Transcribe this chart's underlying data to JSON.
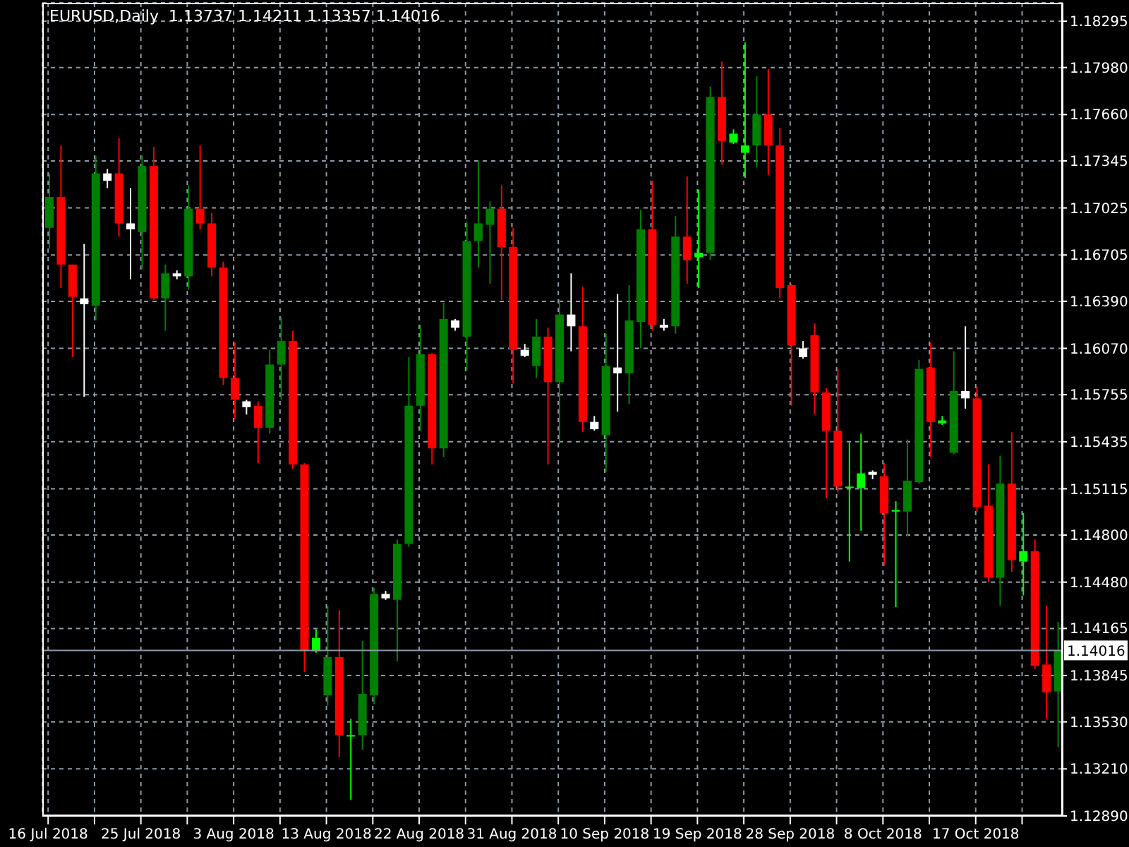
{
  "chart_data": {
    "type": "candlestick",
    "title": "EURUSD,Daily  1.13737 1.14211 1.13357 1.14016",
    "categories": [
      "16 Jul 2018",
      null,
      null,
      null,
      null,
      null,
      null,
      null,
      "25 Jul 2018",
      null,
      null,
      null,
      null,
      null,
      null,
      null,
      "3 Aug 2018",
      null,
      null,
      null,
      null,
      null,
      null,
      null,
      "13 Aug 2018",
      null,
      null,
      null,
      null,
      null,
      null,
      null,
      "22 Aug 2018",
      null,
      null,
      null,
      null,
      null,
      null,
      null,
      "31 Aug 2018",
      null,
      null,
      null,
      null,
      null,
      null,
      null,
      "10 Sep 2018",
      null,
      null,
      null,
      null,
      null,
      null,
      null,
      "19 Sep 2018",
      null,
      null,
      null,
      null,
      null,
      null,
      null,
      "28 Sep 2018",
      null,
      null,
      null,
      null,
      null,
      null,
      null,
      "8 Oct 2018",
      null,
      null,
      null,
      null,
      null,
      null,
      null,
      "17 Oct 2018",
      null,
      null,
      null,
      null,
      null,
      null,
      null
    ],
    "ohlc": [
      [
        1.1689,
        1.1726,
        1.1675,
        1.171
      ],
      [
        1.171,
        1.1745,
        1.1648,
        1.1664
      ],
      [
        1.1664,
        1.1664,
        1.1601,
        1.1642
      ],
      [
        1.1637,
        1.1678,
        1.1574,
        1.1641
      ],
      [
        1.1636,
        1.1738,
        1.1626,
        1.1726
      ],
      [
        1.1721,
        1.1729,
        1.1716,
        1.1726
      ],
      [
        1.1726,
        1.175,
        1.1683,
        1.1692
      ],
      [
        1.1688,
        1.1716,
        1.1654,
        1.1692
      ],
      [
        1.1686,
        1.1738,
        1.1661,
        1.1731
      ],
      [
        1.1731,
        1.1744,
        1.164,
        1.1641
      ],
      [
        1.1641,
        1.1664,
        1.1619,
        1.1658
      ],
      [
        1.1656,
        1.166,
        1.1654,
        1.1658
      ],
      [
        1.1656,
        1.1718,
        1.1647,
        1.1702
      ],
      [
        1.1702,
        1.1745,
        1.1688,
        1.1692
      ],
      [
        1.1692,
        1.1699,
        1.1656,
        1.1662
      ],
      [
        1.1662,
        1.1666,
        1.1582,
        1.1587
      ],
      [
        1.1587,
        1.1611,
        1.1559,
        1.1572
      ],
      [
        1.1567,
        1.1572,
        1.1562,
        1.1571
      ],
      [
        1.1568,
        1.1571,
        1.1529,
        1.1553
      ],
      [
        1.1553,
        1.1606,
        1.1549,
        1.1596
      ],
      [
        1.1596,
        1.1628,
        1.1572,
        1.1612
      ],
      [
        1.1612,
        1.1619,
        1.1525,
        1.1528
      ],
      [
        1.1528,
        1.1529,
        1.1387,
        1.1401
      ],
      [
        1.1401,
        1.1416,
        1.14,
        1.141
      ],
      [
        1.1371,
        1.1432,
        1.1364,
        1.1397
      ],
      [
        1.1397,
        1.1429,
        1.1329,
        1.1344
      ],
      [
        1.1343,
        1.1355,
        1.13,
        1.1344
      ],
      [
        1.1344,
        1.1408,
        1.1334,
        1.1372
      ],
      [
        1.1371,
        1.1444,
        1.1365,
        1.144
      ],
      [
        1.1437,
        1.1442,
        1.1436,
        1.144
      ],
      [
        1.1436,
        1.1477,
        1.1394,
        1.1474
      ],
      [
        1.1474,
        1.1601,
        1.1472,
        1.1568
      ],
      [
        1.1568,
        1.1623,
        1.1551,
        1.1603
      ],
      [
        1.1603,
        1.1604,
        1.1528,
        1.1539
      ],
      [
        1.1539,
        1.1638,
        1.1533,
        1.1627
      ],
      [
        1.1621,
        1.1627,
        1.1619,
        1.1626
      ],
      [
        1.1615,
        1.1693,
        1.1592,
        1.168
      ],
      [
        1.168,
        1.1734,
        1.1662,
        1.1692
      ],
      [
        1.1691,
        1.1707,
        1.1651,
        1.1702
      ],
      [
        1.1702,
        1.1718,
        1.164,
        1.1676
      ],
      [
        1.1676,
        1.1689,
        1.1583,
        1.1606
      ],
      [
        1.1602,
        1.161,
        1.1601,
        1.1606
      ],
      [
        1.1595,
        1.1627,
        1.1587,
        1.1615
      ],
      [
        1.1615,
        1.1621,
        1.1528,
        1.1584
      ],
      [
        1.1584,
        1.164,
        1.1542,
        1.163
      ],
      [
        1.1622,
        1.1658,
        1.1605,
        1.163
      ],
      [
        1.1622,
        1.1649,
        1.155,
        1.1557
      ],
      [
        1.1552,
        1.1561,
        1.1551,
        1.1557
      ],
      [
        1.1548,
        1.1617,
        1.1523,
        1.1595
      ],
      [
        1.159,
        1.1644,
        1.1564,
        1.1594
      ],
      [
        1.159,
        1.165,
        1.1569,
        1.1626
      ],
      [
        1.1625,
        1.1701,
        1.1607,
        1.1688
      ],
      [
        1.1688,
        1.1721,
        1.1619,
        1.1623
      ],
      [
        1.1621,
        1.1627,
        1.1619,
        1.1623
      ],
      [
        1.1622,
        1.1697,
        1.1617,
        1.1683
      ],
      [
        1.1683,
        1.1724,
        1.1651,
        1.1667
      ],
      [
        1.1669,
        1.1715,
        1.1648,
        1.1672
      ],
      [
        1.1672,
        1.1785,
        1.1667,
        1.1778
      ],
      [
        1.1778,
        1.1802,
        1.1732,
        1.1748
      ],
      [
        1.1747,
        1.1756,
        1.1746,
        1.1753
      ],
      [
        1.174,
        1.1815,
        1.1723,
        1.1745
      ],
      [
        1.1745,
        1.1792,
        1.173,
        1.1766
      ],
      [
        1.1766,
        1.1797,
        1.1725,
        1.1745
      ],
      [
        1.1745,
        1.1757,
        1.1641,
        1.1648
      ],
      [
        1.165,
        1.1651,
        1.1568,
        1.1609
      ],
      [
        1.1601,
        1.1612,
        1.16,
        1.1607
      ],
      [
        1.1616,
        1.1624,
        1.1562,
        1.1577
      ],
      [
        1.1577,
        1.158,
        1.1505,
        1.1551
      ],
      [
        1.1551,
        1.1593,
        1.1509,
        1.1513
      ],
      [
        1.1512,
        1.1543,
        1.1462,
        1.1513
      ],
      [
        1.1512,
        1.1549,
        1.1483,
        1.1522
      ],
      [
        1.1521,
        1.1524,
        1.1518,
        1.1523
      ],
      [
        1.152,
        1.1529,
        1.1459,
        1.1495
      ],
      [
        1.1496,
        1.1503,
        1.1431,
        1.1497
      ],
      [
        1.1496,
        1.1545,
        1.1479,
        1.1517
      ],
      [
        1.1516,
        1.1599,
        1.1515,
        1.1593
      ],
      [
        1.1594,
        1.1611,
        1.1533,
        1.1557
      ],
      [
        1.1556,
        1.1561,
        1.1555,
        1.1558
      ],
      [
        1.1536,
        1.1605,
        1.1535,
        1.1578
      ],
      [
        1.1573,
        1.1622,
        1.1566,
        1.1578
      ],
      [
        1.1573,
        1.1581,
        1.1496,
        1.1499
      ],
      [
        1.15,
        1.1528,
        1.1448,
        1.1451
      ],
      [
        1.1451,
        1.1534,
        1.1432,
        1.1515
      ],
      [
        1.1515,
        1.155,
        1.1455,
        1.1463
      ],
      [
        1.1462,
        1.1495,
        1.1439,
        1.1469
      ],
      [
        1.1469,
        1.1477,
        1.1389,
        1.1391
      ],
      [
        1.1392,
        1.1432,
        1.1355,
        1.1373
      ],
      [
        1.13737,
        1.14211,
        1.13357,
        1.14016
      ]
    ],
    "colors": [
      "#008000",
      "#ff0000",
      "#ff0000",
      "#ffffff",
      "#008000",
      "#ffffff",
      "#ff0000",
      "#ffffff",
      "#008000",
      "#ff0000",
      "#008000",
      "#ffffff",
      "#008000",
      "#ff0000",
      "#ff0000",
      "#ff0000",
      "#ff0000",
      "#ffffff",
      "#ff0000",
      "#008000",
      "#008000",
      "#ff0000",
      "#ff0000",
      "#00ff00",
      "#008000",
      "#ff0000",
      "#00ff00",
      "#008000",
      "#008000",
      "#ffffff",
      "#008000",
      "#008000",
      "#008000",
      "#ff0000",
      "#008000",
      "#ffffff",
      "#008000",
      "#008000",
      "#008000",
      "#ff0000",
      "#ff0000",
      "#ffffff",
      "#008000",
      "#ff0000",
      "#008000",
      "#ffffff",
      "#ff0000",
      "#ffffff",
      "#008000",
      "#ffffff",
      "#008000",
      "#008000",
      "#ff0000",
      "#ffffff",
      "#008000",
      "#ff0000",
      "#00ff00",
      "#008000",
      "#ff0000",
      "#00ff00",
      "#00ff00",
      "#008000",
      "#ff0000",
      "#ff0000",
      "#ff0000",
      "#ffffff",
      "#ff0000",
      "#ff0000",
      "#ff0000",
      "#00ff00",
      "#00ff00",
      "#ffffff",
      "#ff0000",
      "#00ff00",
      "#008000",
      "#008000",
      "#ff0000",
      "#00ff00",
      "#008000",
      "#ffffff",
      "#ff0000",
      "#ff0000",
      "#008000",
      "#ff0000",
      "#00ff00",
      "#ff0000",
      "#ff0000",
      "#008000"
    ],
    "ylim": [
      1.1289,
      1.1842
    ],
    "yticks": [
      {
        "value": 1.18295,
        "label": "1.18295"
      },
      {
        "value": 1.1798,
        "label": "1.17980"
      },
      {
        "value": 1.1766,
        "label": "1.17660"
      },
      {
        "value": 1.17345,
        "label": "1.17345"
      },
      {
        "value": 1.17025,
        "label": "1.17025"
      },
      {
        "value": 1.16705,
        "label": "1.16705"
      },
      {
        "value": 1.1639,
        "label": "1.16390"
      },
      {
        "value": 1.1607,
        "label": "1.16070"
      },
      {
        "value": 1.15755,
        "label": "1.15755"
      },
      {
        "value": 1.15435,
        "label": "1.15435"
      },
      {
        "value": 1.15115,
        "label": "1.15115"
      },
      {
        "value": 1.148,
        "label": "1.14800"
      },
      {
        "value": 1.1448,
        "label": "1.14480"
      },
      {
        "value": 1.14165,
        "label": "1.14165"
      },
      {
        "value": 1.13845,
        "label": "1.13845"
      },
      {
        "value": 1.1353,
        "label": "1.13530"
      },
      {
        "value": 1.1321,
        "label": "1.13210"
      },
      {
        "value": 1.1289,
        "label": "1.12890"
      }
    ],
    "ref_lines": [
      {
        "axis": "y",
        "value": 1.14016,
        "label": "1.14016",
        "color": "#8c9aa6"
      }
    ],
    "grid": true
  }
}
